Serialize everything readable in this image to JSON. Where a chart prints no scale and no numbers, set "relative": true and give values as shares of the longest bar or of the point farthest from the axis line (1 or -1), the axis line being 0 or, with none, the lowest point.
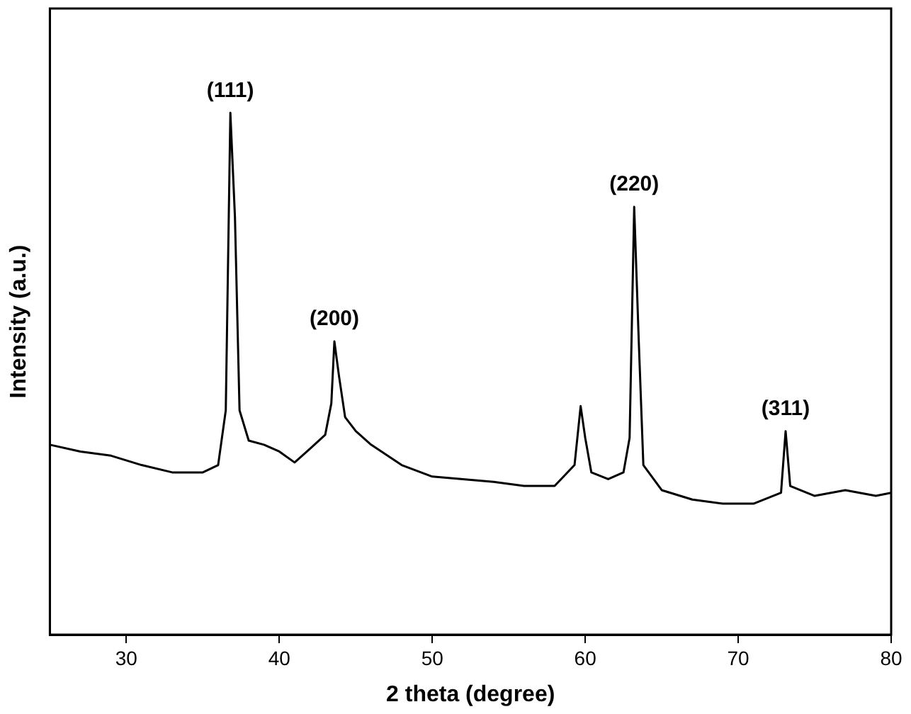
{
  "chart_data": {
    "type": "line",
    "xlabel": "2 theta (degree)",
    "ylabel": "Intensity (a.u.)",
    "relative": true,
    "xlim": [
      25,
      80
    ],
    "xticks": [
      30,
      40,
      50,
      60,
      70,
      80
    ],
    "grid": false,
    "legend": false,
    "marker": "none",
    "line_style": "solid",
    "series": [
      {
        "color": "#000000",
        "x": [
          25,
          27,
          29,
          31,
          33,
          35,
          36,
          36.5,
          36.8,
          37.1,
          37.4,
          38,
          39,
          40,
          41,
          42,
          43,
          43.4,
          43.6,
          43.9,
          44.3,
          45,
          46,
          48,
          50,
          52,
          54,
          56,
          58,
          59.3,
          59.7,
          60,
          60.4,
          61.5,
          62.5,
          62.9,
          63.2,
          63.5,
          63.8,
          65,
          67,
          69,
          71,
          72.8,
          73.1,
          73.4,
          75,
          77,
          79,
          80
        ],
        "values": [
          0.364,
          0.351,
          0.343,
          0.325,
          0.311,
          0.311,
          0.325,
          0.43,
          1.0,
          0.8,
          0.43,
          0.372,
          0.364,
          0.351,
          0.33,
          0.356,
          0.383,
          0.443,
          0.562,
          0.496,
          0.417,
          0.39,
          0.364,
          0.325,
          0.303,
          0.298,
          0.293,
          0.285,
          0.285,
          0.325,
          0.438,
          0.377,
          0.311,
          0.298,
          0.311,
          0.377,
          0.82,
          0.562,
          0.325,
          0.277,
          0.259,
          0.251,
          0.251,
          0.272,
          0.39,
          0.285,
          0.266,
          0.277,
          0.266,
          0.272
        ]
      }
    ],
    "annotations": [
      {
        "text": "(111)",
        "x": 36.8,
        "y": 1.0
      },
      {
        "text": "(200)",
        "x": 43.6,
        "y": 0.562
      },
      {
        "text": "(220)",
        "x": 63.2,
        "y": 0.82
      },
      {
        "text": "(311)",
        "x": 73.1,
        "y": 0.39
      }
    ]
  }
}
